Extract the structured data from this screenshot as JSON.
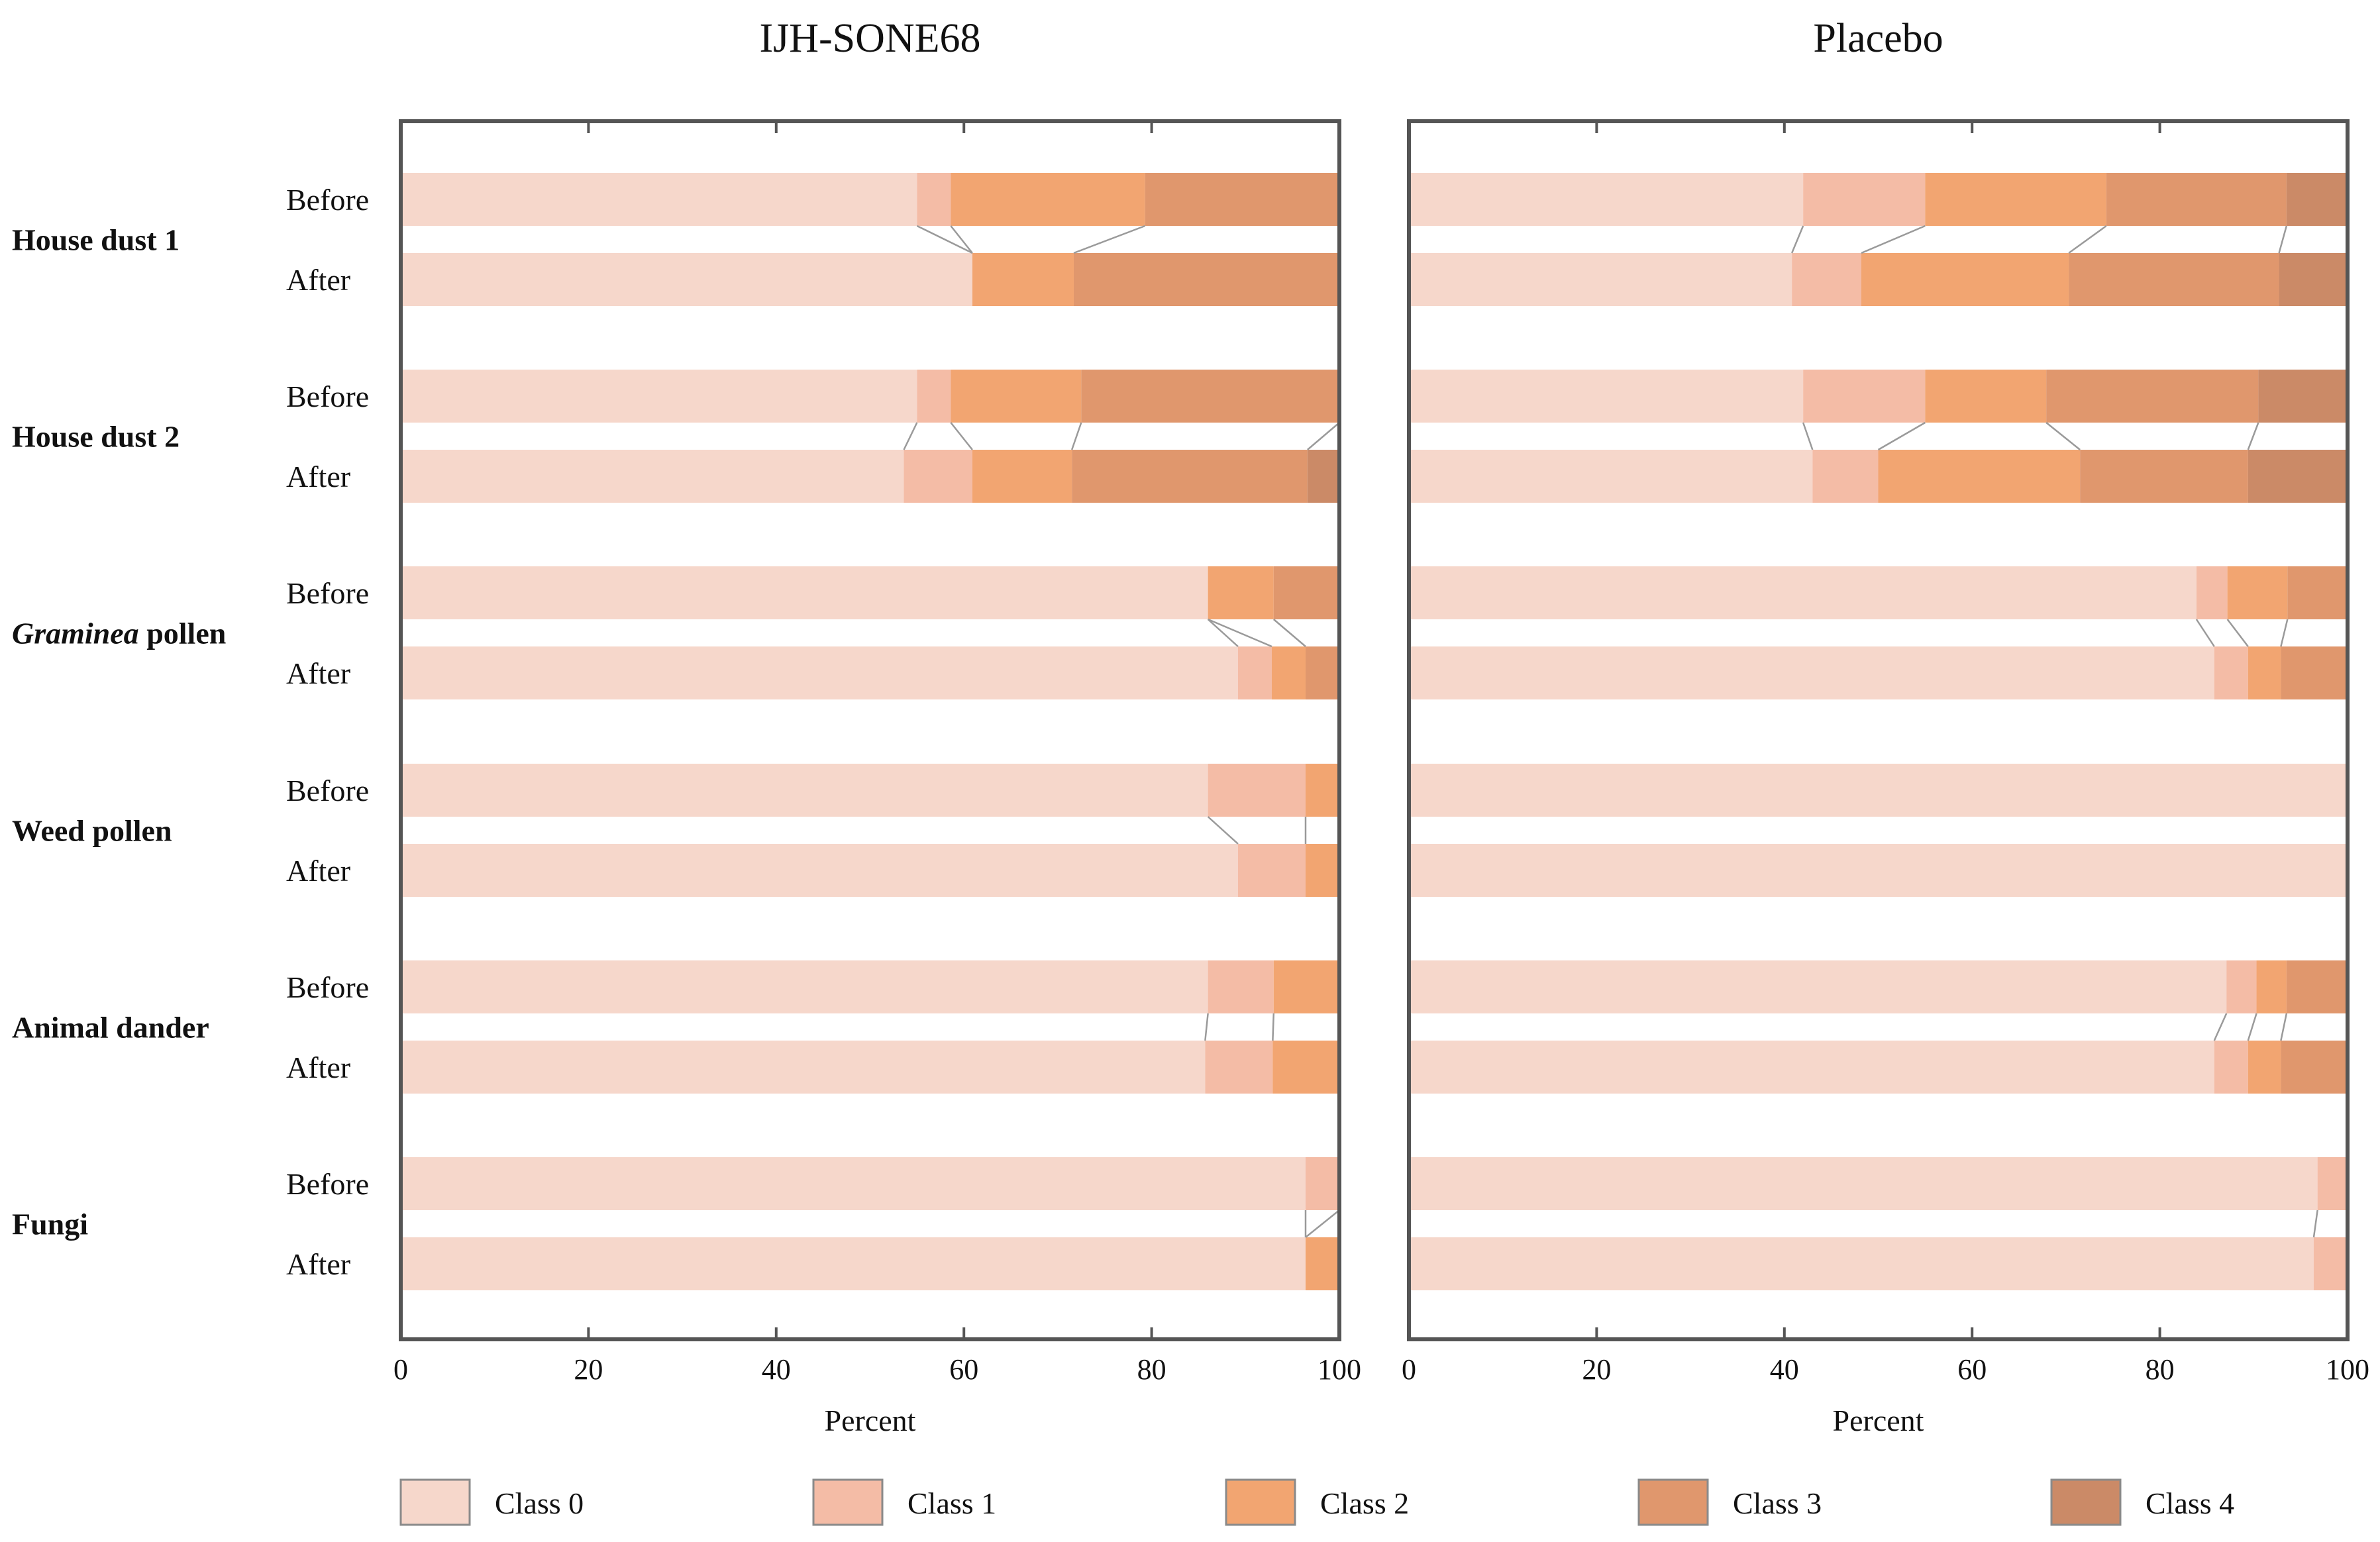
{
  "chart_data": {
    "type": "bar",
    "subtype": "stacked-horizontal-100-percent",
    "panels": [
      {
        "title": "IJH-SONE68",
        "xlabel": "Percent",
        "xlim": [
          0,
          100
        ],
        "xticks": [
          "0",
          "20",
          "40",
          "60",
          "80",
          "100"
        ],
        "groups": [
          {
            "label": "House dust 1",
            "italic_part": "",
            "rows": [
              {
                "label": "Before",
                "values": [
                  55.0,
                  3.6,
                  20.7,
                  20.7,
                  0.0
                ]
              },
              {
                "label": "After",
                "values": [
                  60.9,
                  0.0,
                  10.8,
                  28.3,
                  0.0
                ]
              }
            ]
          },
          {
            "label": "House dust 2",
            "italic_part": "",
            "rows": [
              {
                "label": "Before",
                "values": [
                  55.0,
                  3.6,
                  13.9,
                  27.5,
                  0.0
                ]
              },
              {
                "label": "After",
                "values": [
                  53.6,
                  7.3,
                  10.6,
                  25.1,
                  3.4
                ]
              }
            ]
          },
          {
            "label": " pollen",
            "italic_part": "Graminea",
            "rows": [
              {
                "label": "Before",
                "values": [
                  86.0,
                  0.0,
                  7.0,
                  7.0,
                  0.0
                ]
              },
              {
                "label": "After",
                "values": [
                  89.2,
                  3.6,
                  3.6,
                  3.6,
                  0.0
                ]
              }
            ]
          },
          {
            "label": "Weed pollen",
            "italic_part": "",
            "rows": [
              {
                "label": "Before",
                "values": [
                  86.0,
                  10.4,
                  3.6,
                  0.0,
                  0.0
                ]
              },
              {
                "label": "After",
                "values": [
                  89.2,
                  7.2,
                  3.6,
                  0.0,
                  0.0
                ]
              }
            ]
          },
          {
            "label": "Animal dander",
            "italic_part": "",
            "rows": [
              {
                "label": "Before",
                "values": [
                  86.0,
                  7.0,
                  7.0,
                  0.0,
                  0.0
                ]
              },
              {
                "label": "After",
                "values": [
                  85.7,
                  7.2,
                  7.1,
                  0.0,
                  0.0
                ]
              }
            ]
          },
          {
            "label": "Fungi",
            "italic_part": "",
            "rows": [
              {
                "label": "Before",
                "values": [
                  96.4,
                  3.6,
                  0.0,
                  0.0,
                  0.0
                ]
              },
              {
                "label": "After",
                "values": [
                  96.4,
                  0.0,
                  3.6,
                  0.0,
                  0.0
                ]
              }
            ]
          }
        ]
      },
      {
        "title": "Placebo",
        "xlabel": "Percent",
        "xlim": [
          0,
          100
        ],
        "xticks": [
          "0",
          "20",
          "40",
          "60",
          "80",
          "100"
        ],
        "groups": [
          {
            "label": "House dust 1",
            "italic_part": "",
            "rows": [
              {
                "label": "Before",
                "values": [
                  42.0,
                  13.0,
                  19.3,
                  19.2,
                  6.5
                ]
              },
              {
                "label": "After",
                "values": [
                  40.8,
                  7.4,
                  22.1,
                  22.4,
                  7.3
                ]
              }
            ]
          },
          {
            "label": "House dust 2",
            "italic_part": "",
            "rows": [
              {
                "label": "Before",
                "values": [
                  42.0,
                  13.0,
                  12.9,
                  22.6,
                  9.5
                ]
              },
              {
                "label": "After",
                "values": [
                  43.0,
                  7.0,
                  21.5,
                  17.9,
                  10.6
                ]
              }
            ]
          },
          {
            "label": " pollen",
            "italic_part": "Graminea",
            "rows": [
              {
                "label": "Before",
                "values": [
                  83.9,
                  3.3,
                  6.4,
                  6.4,
                  0.0
                ]
              },
              {
                "label": "After",
                "values": [
                  85.8,
                  3.6,
                  3.5,
                  7.1,
                  0.0
                ]
              }
            ]
          },
          {
            "label": "Weed pollen",
            "italic_part": "",
            "rows": [
              {
                "label": "Before",
                "values": [
                  100.0,
                  0.0,
                  0.0,
                  0.0,
                  0.0
                ]
              },
              {
                "label": "After",
                "values": [
                  100.0,
                  0.0,
                  0.0,
                  0.0,
                  0.0
                ]
              }
            ]
          },
          {
            "label": "Animal dander",
            "italic_part": "",
            "rows": [
              {
                "label": "Before",
                "values": [
                  87.1,
                  3.2,
                  3.2,
                  6.5,
                  0.0
                ]
              },
              {
                "label": "After",
                "values": [
                  85.8,
                  3.6,
                  3.5,
                  7.1,
                  0.0
                ]
              }
            ]
          },
          {
            "label": "Fungi",
            "italic_part": "",
            "rows": [
              {
                "label": "Before",
                "values": [
                  96.8,
                  3.2,
                  0.0,
                  0.0,
                  0.0
                ]
              },
              {
                "label": "After",
                "values": [
                  96.4,
                  3.6,
                  0.0,
                  0.0,
                  0.0
                ]
              }
            ]
          }
        ]
      }
    ],
    "legend": {
      "position": "bottom",
      "entries": [
        {
          "name": "Class 0",
          "color": "#f6d7cb"
        },
        {
          "name": "Class 1",
          "color": "#f4bca6"
        },
        {
          "name": "Class 2",
          "color": "#f2a571"
        },
        {
          "name": "Class 3",
          "color": "#e0976d"
        },
        {
          "name": "Class 4",
          "color": "#cb8a67"
        }
      ]
    },
    "connector_color": "#9a9a9a",
    "frame_color": "#555555"
  }
}
